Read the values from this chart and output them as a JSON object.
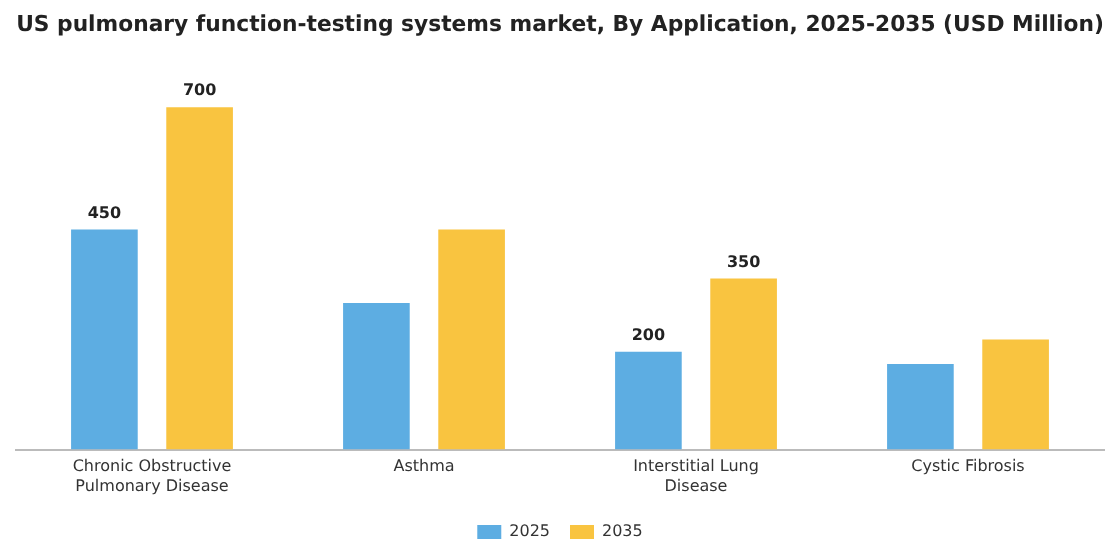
{
  "chart_data": {
    "type": "bar",
    "title": "US pulmonary function-testing systems market, By Application, 2025-2035 (USD Million)",
    "categories": [
      "Chronic Obstructive Pulmonary Disease",
      "Asthma",
      "Interstitial Lung Disease",
      "Cystic Fibrosis"
    ],
    "series": [
      {
        "name": "2025",
        "color": "#5dade2",
        "values": [
          450,
          300,
          200,
          175
        ],
        "value_labels": [
          "450",
          null,
          "200",
          null
        ]
      },
      {
        "name": "2035",
        "color": "#f9c440",
        "values": [
          700,
          450,
          350,
          225
        ],
        "value_labels": [
          "700",
          null,
          "350",
          null
        ]
      }
    ],
    "legend": "bottom",
    "grid": false
  }
}
